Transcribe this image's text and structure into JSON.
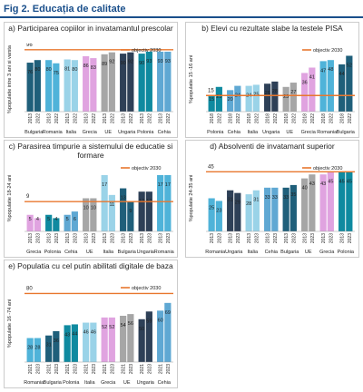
{
  "header": {
    "title": "Fig 2. Educația de calitate"
  },
  "chart_data": [
    {
      "type": "bar",
      "title": "a) Participarea copiilor in invatamantul prescolar",
      "ylabel": "%populatie intre 3 ani si varsta",
      "ylim": [
        0,
        100
      ],
      "target": {
        "label": "objectiv 2030",
        "value": 96
      },
      "categories": [
        "Bulgaria",
        "Romania",
        "Italia",
        "Grecia",
        "UE",
        "Ungaria",
        "Polonia",
        "Cehia"
      ],
      "colors": [
        "#1f5f7a",
        "#4fb3d9",
        "#9ad3e8",
        "#e0a3e0",
        "#a6a6a6",
        "#2e4057",
        "#0f8aa0",
        "#5fa8d3"
      ],
      "series": [
        {
          "name": "2013",
          "values": [
            76,
            80,
            81,
            86,
            89,
            90,
            90,
            93
          ]
        },
        {
          "name": "2022",
          "values": [
            80,
            75,
            80,
            83,
            92,
            92,
            93,
            93
          ]
        }
      ]
    },
    {
      "type": "bar",
      "title": "b) Elevi cu rezultate slabe la testele PISA",
      "ylabel": "%populatie 15 -16 ani",
      "ylim": [
        0,
        60
      ],
      "target": {
        "label": "objectiv 2030",
        "value": 15
      },
      "categories": [
        "Polonia",
        "Cehia",
        "Italia",
        "Ungaria",
        "UE",
        "Grecia",
        "Romania",
        "Bulgaria"
      ],
      "colors": [
        "#0f8aa0",
        "#5fa8d3",
        "#9ad3e8",
        "#2e4057",
        "#a6a6a6",
        "#e0a3e0",
        "#4fb3d9",
        "#1f5f7a"
      ],
      "series": [
        {
          "name": "2018",
          "values": [
            15,
            20,
            24,
            26,
            23,
            36,
            47,
            44
          ]
        },
        {
          "name": "2022",
          "values": [
            23,
            24,
            25,
            28,
            27,
            41,
            48,
            52
          ]
        }
      ]
    },
    {
      "type": "bar",
      "title": "c) Parasirea timpurie a sistemului de educatie si formare",
      "ylabel": "%populatie 18-24 ani",
      "ylim": [
        0,
        20
      ],
      "target": {
        "label": "objectiv 2030",
        "value": 9
      },
      "categories": [
        "Grecia",
        "Polonia",
        "Cehia",
        "UE",
        "Italia",
        "Bulgaria",
        "Ungaria",
        "Romania"
      ],
      "colors": [
        "#e0a3e0",
        "#0f8aa0",
        "#5fa8d3",
        "#a6a6a6",
        "#9ad3e8",
        "#1f5f7a",
        "#2e4057",
        "#4fb3d9"
      ],
      "series": [
        {
          "name": "2013",
          "values": [
            5,
            5,
            5,
            10,
            17,
            13,
            12,
            17
          ]
        },
        {
          "name": "2023",
          "values": [
            4,
            4,
            6,
            10,
            11,
            9,
            12,
            17
          ]
        }
      ]
    },
    {
      "type": "bar",
      "title": "d) Absolventi de invatamant superior",
      "ylabel": "%populatie 24-35 ani",
      "ylim": [
        0,
        50
      ],
      "target": {
        "label": "objectiv 2030",
        "value": 45
      },
      "categories": [
        "Romania",
        "Ungaria",
        "Italia",
        "Cehia",
        "Bulgaria",
        "UE",
        "Grecia",
        "Polonia"
      ],
      "colors": [
        "#4fb3d9",
        "#2e4057",
        "#9ad3e8",
        "#5fa8d3",
        "#1f5f7a",
        "#a6a6a6",
        "#e0a3e0",
        "#0f8aa0"
      ],
      "series": [
        {
          "name": "2013",
          "values": [
            25,
            31,
            28,
            33,
            33,
            40,
            43,
            45
          ]
        },
        {
          "name": "2023",
          "values": [
            23,
            29,
            31,
            33,
            35,
            43,
            45,
            45
          ]
        }
      ]
    },
    {
      "type": "bar",
      "title": "e) Populatia cu cel putin abilitati digitale de baza",
      "ylabel": "%populatie 16 -74 ani",
      "ylim": [
        0,
        90
      ],
      "target": {
        "label": "objectiv 2030",
        "value": 80
      },
      "categories": [
        "Romania",
        "Bulgaria",
        "Polonia",
        "Italia",
        "Grecia",
        "UE",
        "Ungaria",
        "Cehia"
      ],
      "colors": [
        "#4fb3d9",
        "#1f5f7a",
        "#0f8aa0",
        "#9ad3e8",
        "#e0a3e0",
        "#a6a6a6",
        "#2e4057",
        "#5fa8d3"
      ],
      "series": [
        {
          "name": "2021",
          "values": [
            28,
            31,
            43,
            46,
            52,
            54,
            50,
            60
          ]
        },
        {
          "name": "2023",
          "values": [
            28,
            36,
            44,
            46,
            52,
            56,
            59,
            69
          ]
        }
      ]
    }
  ]
}
